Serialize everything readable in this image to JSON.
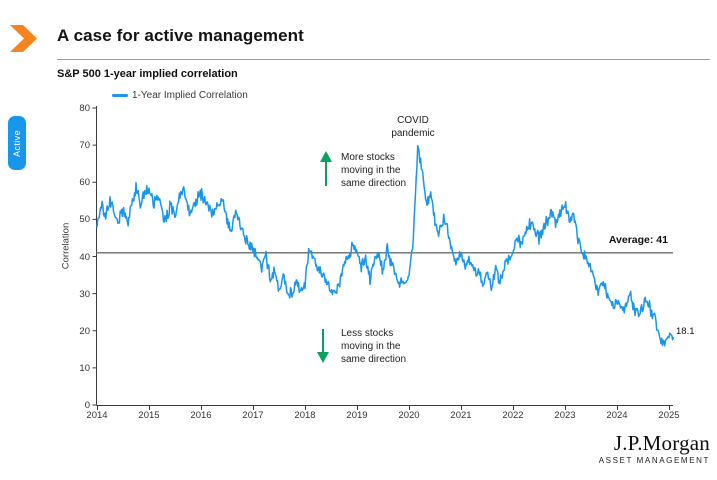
{
  "header": {
    "title": "A case for active management",
    "tab": "Active"
  },
  "colors": {
    "line": "#1896ec",
    "tab_blue": "#1896ec",
    "accent_orange": "#f6851f",
    "green": "#0ca05f",
    "axis": "#3c3c3c",
    "average_line": "#6b6b6b"
  },
  "brand": {
    "name": "J.P.Morgan",
    "division": "ASSET MANAGEMENT"
  },
  "chart_data": {
    "type": "line",
    "title": "S&P 500 1-year implied correlation",
    "ylabel": "Correlation",
    "legend": [
      "1-Year Implied Correlation"
    ],
    "x_ticks": [
      "2014",
      "2015",
      "2016",
      "2017",
      "2018",
      "2019",
      "2020",
      "2021",
      "2022",
      "2023",
      "2024",
      "2025"
    ],
    "y_ticks": [
      0,
      10,
      20,
      30,
      40,
      50,
      60,
      70,
      80
    ],
    "ylim": [
      0,
      80
    ],
    "x_start_year": 2014,
    "points_per_year": 12,
    "series": [
      {
        "name": "1-Year Implied Correlation",
        "color": "#1896ec",
        "values": [
          48,
          54,
          51,
          55,
          52,
          50,
          53,
          49,
          54,
          59,
          54,
          57,
          58,
          54,
          56,
          52,
          50,
          54,
          51,
          56,
          58,
          53,
          52,
          55,
          57,
          55,
          53,
          51,
          54,
          56,
          50,
          47,
          52,
          49,
          45,
          43,
          42,
          40,
          37,
          40,
          34,
          36,
          31,
          35,
          30,
          30,
          33,
          31,
          33,
          42,
          39,
          37,
          35,
          33,
          31,
          30,
          33,
          38,
          40,
          43,
          41,
          37,
          40,
          34,
          39,
          41,
          36,
          42,
          38,
          35,
          33,
          32,
          34,
          45,
          69,
          64,
          54,
          57,
          49,
          46,
          51,
          47,
          41,
          39,
          41,
          37,
          39,
          35,
          37,
          32,
          35,
          32,
          37,
          33,
          37,
          39,
          41,
          45,
          43,
          47,
          49,
          47,
          45,
          47,
          50,
          52,
          49,
          52,
          54,
          50,
          51,
          45,
          41,
          39,
          37,
          32,
          31,
          33,
          29,
          27,
          28,
          26,
          27,
          30,
          25,
          24,
          27,
          29,
          25,
          23,
          17,
          16,
          18,
          18.1
        ]
      }
    ],
    "average_line": {
      "value": 41,
      "label": "Average: 41"
    },
    "end_label": "18.1",
    "annotations": {
      "covid": {
        "lines": [
          "COVID",
          "pandemic"
        ]
      },
      "more": {
        "lines": [
          "More stocks",
          "moving in the",
          "same direction"
        ]
      },
      "less": {
        "lines": [
          "Less stocks",
          "moving in the",
          "same direction"
        ]
      }
    },
    "legend_position": "top-left",
    "grid": false
  }
}
